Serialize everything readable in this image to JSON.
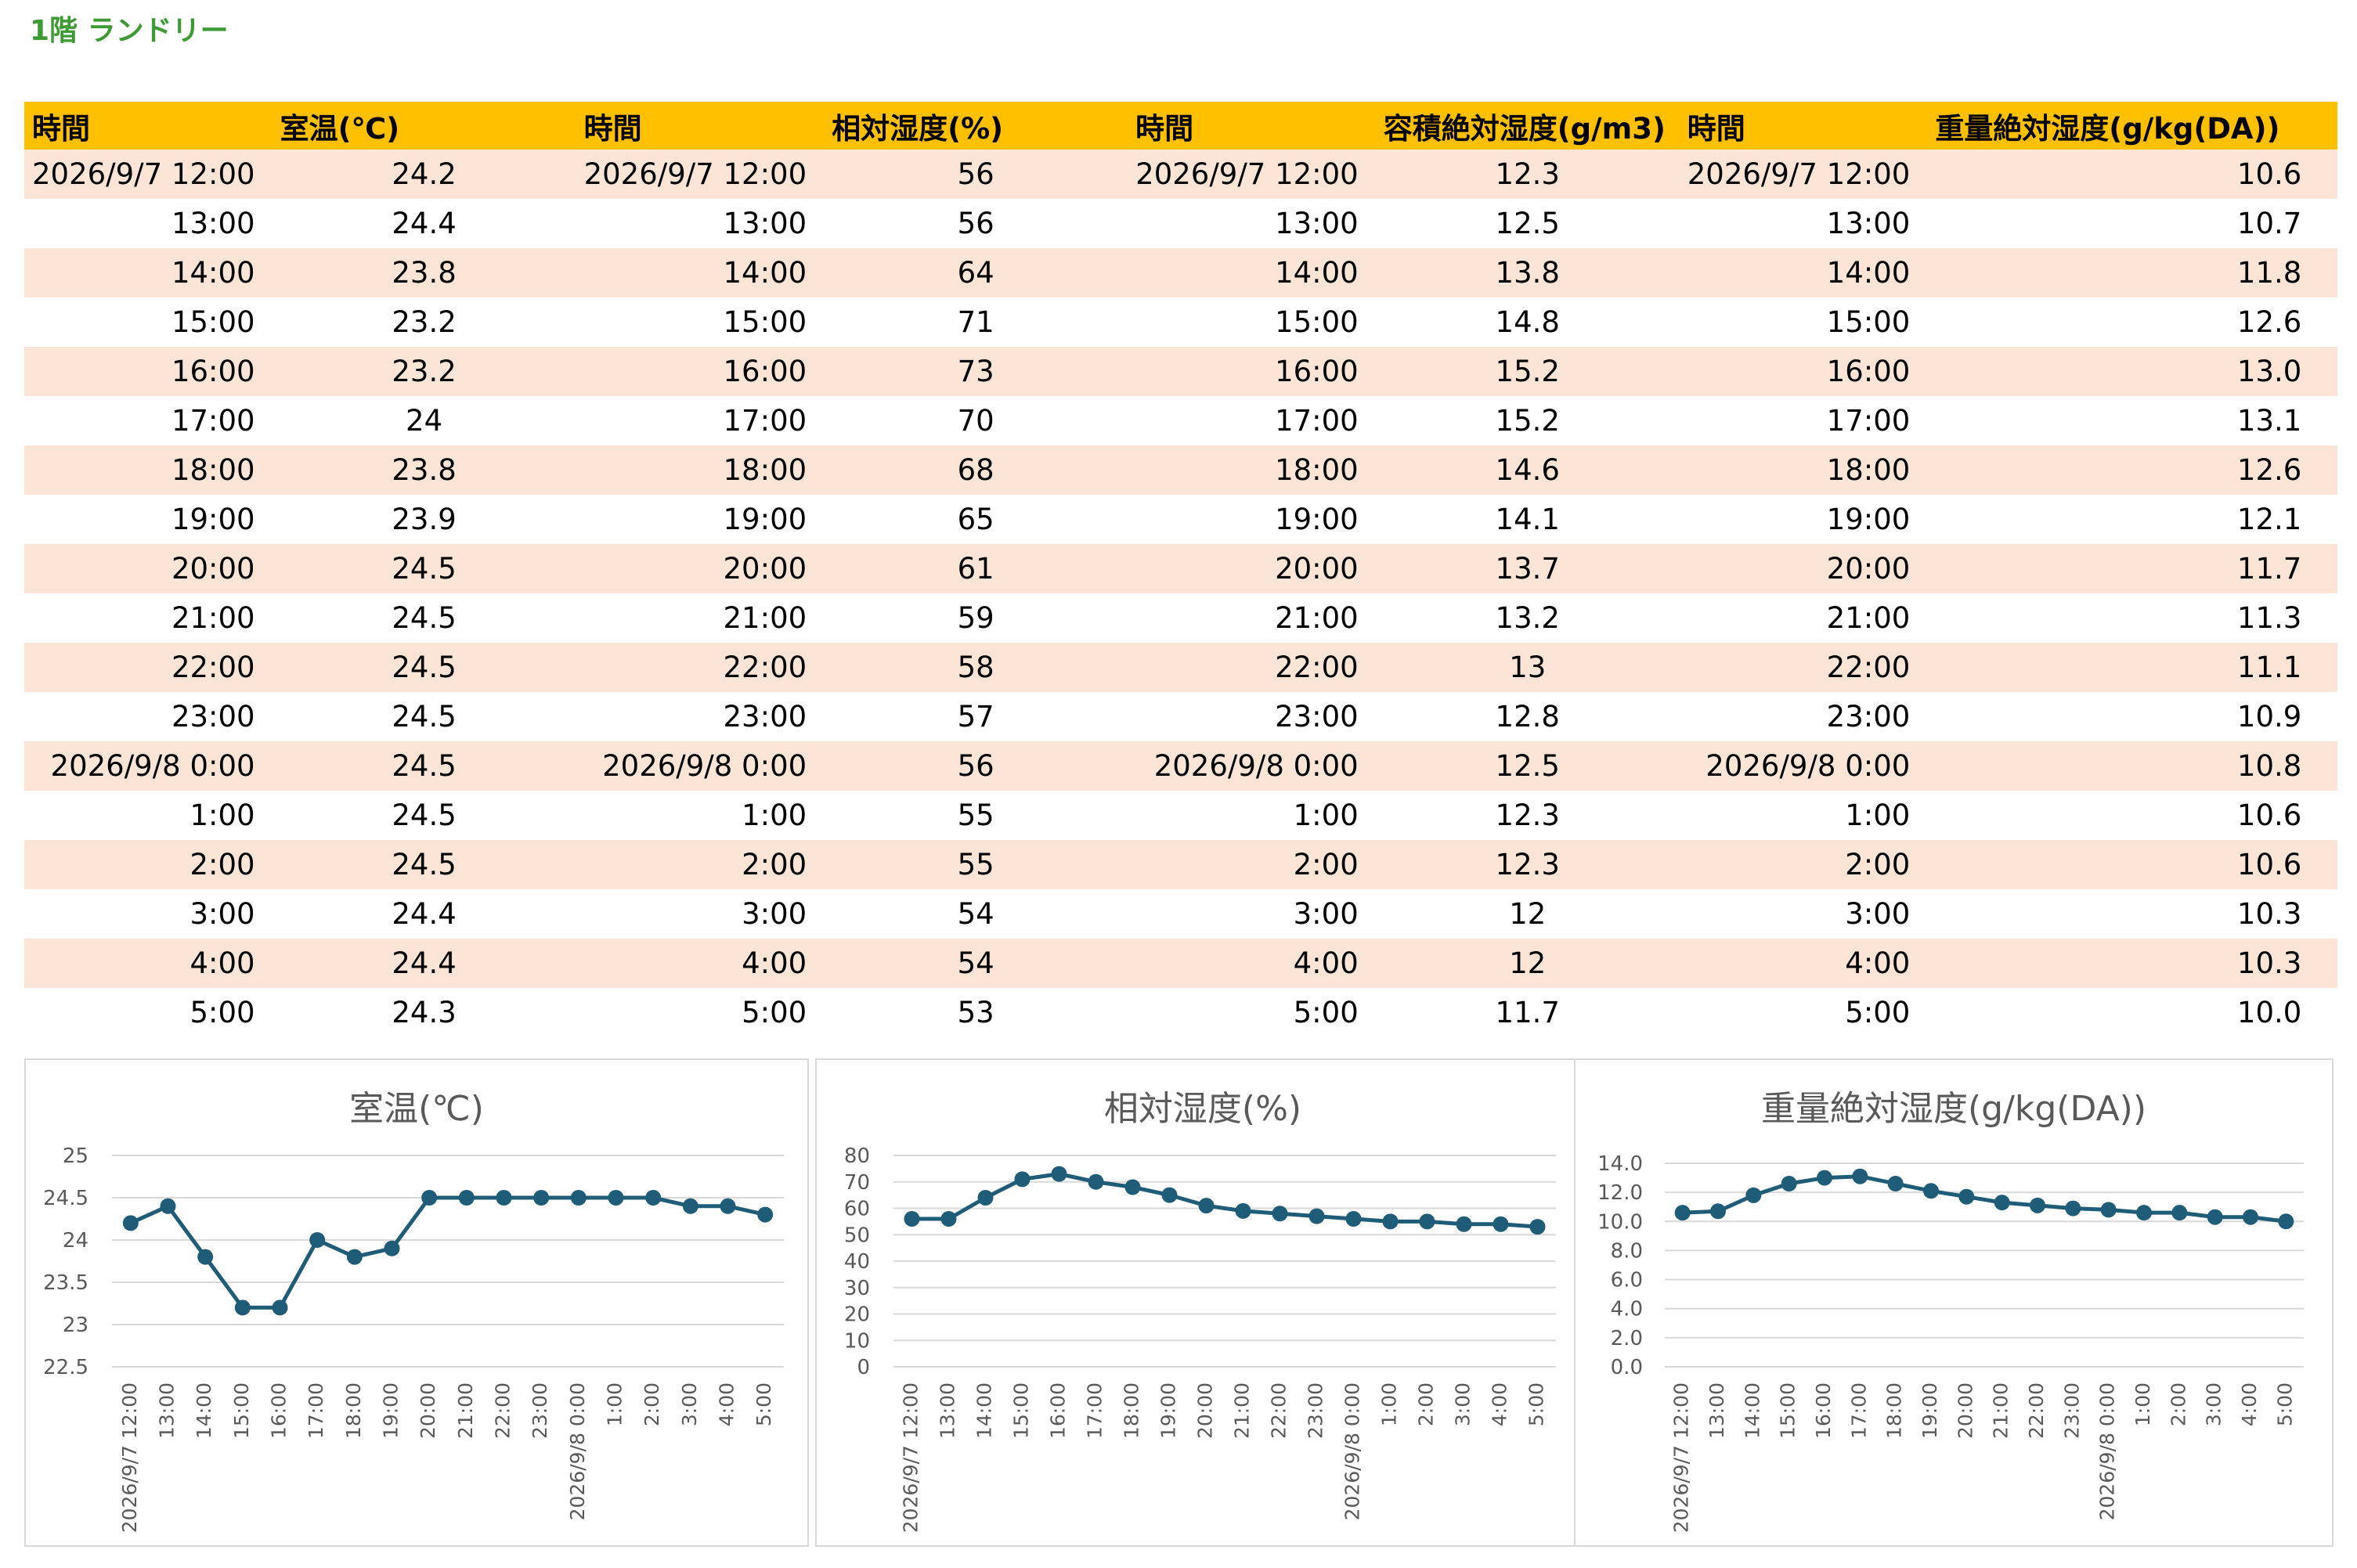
{
  "sheet_title": "1階 ランドリー",
  "table": {
    "headers": [
      "時間",
      "室温(℃)",
      "時間",
      "相対湿度(%)",
      "時間",
      "容積絶対湿度(g/m3)",
      "時間",
      "重量絶対湿度(g/kg(DA))"
    ],
    "rows": [
      [
        "2026/9/7 12:00",
        "24.2",
        "2026/9/7 12:00",
        "56",
        "2026/9/7 12:00",
        "12.3",
        "2026/9/7 12:00",
        "10.6"
      ],
      [
        "13:00",
        "24.4",
        "13:00",
        "56",
        "13:00",
        "12.5",
        "13:00",
        "10.7"
      ],
      [
        "14:00",
        "23.8",
        "14:00",
        "64",
        "14:00",
        "13.8",
        "14:00",
        "11.8"
      ],
      [
        "15:00",
        "23.2",
        "15:00",
        "71",
        "15:00",
        "14.8",
        "15:00",
        "12.6"
      ],
      [
        "16:00",
        "23.2",
        "16:00",
        "73",
        "16:00",
        "15.2",
        "16:00",
        "13.0"
      ],
      [
        "17:00",
        "24",
        "17:00",
        "70",
        "17:00",
        "15.2",
        "17:00",
        "13.1"
      ],
      [
        "18:00",
        "23.8",
        "18:00",
        "68",
        "18:00",
        "14.6",
        "18:00",
        "12.6"
      ],
      [
        "19:00",
        "23.9",
        "19:00",
        "65",
        "19:00",
        "14.1",
        "19:00",
        "12.1"
      ],
      [
        "20:00",
        "24.5",
        "20:00",
        "61",
        "20:00",
        "13.7",
        "20:00",
        "11.7"
      ],
      [
        "21:00",
        "24.5",
        "21:00",
        "59",
        "21:00",
        "13.2",
        "21:00",
        "11.3"
      ],
      [
        "22:00",
        "24.5",
        "22:00",
        "58",
        "22:00",
        "13",
        "22:00",
        "11.1"
      ],
      [
        "23:00",
        "24.5",
        "23:00",
        "57",
        "23:00",
        "12.8",
        "23:00",
        "10.9"
      ],
      [
        "2026/9/8 0:00",
        "24.5",
        "2026/9/8 0:00",
        "56",
        "2026/9/8 0:00",
        "12.5",
        "2026/9/8 0:00",
        "10.8"
      ],
      [
        "1:00",
        "24.5",
        "1:00",
        "55",
        "1:00",
        "12.3",
        "1:00",
        "10.6"
      ],
      [
        "2:00",
        "24.5",
        "2:00",
        "55",
        "2:00",
        "12.3",
        "2:00",
        "10.6"
      ],
      [
        "3:00",
        "24.4",
        "3:00",
        "54",
        "3:00",
        "12",
        "3:00",
        "10.3"
      ],
      [
        "4:00",
        "24.4",
        "4:00",
        "54",
        "4:00",
        "12",
        "4:00",
        "10.3"
      ],
      [
        "5:00",
        "24.3",
        "5:00",
        "53",
        "5:00",
        "11.7",
        "5:00",
        "10.0"
      ]
    ]
  },
  "chart_data": [
    {
      "type": "line",
      "title": "室温(℃)",
      "categories": [
        "2026/9/7 12:00",
        "13:00",
        "14:00",
        "15:00",
        "16:00",
        "17:00",
        "18:00",
        "19:00",
        "20:00",
        "21:00",
        "22:00",
        "23:00",
        "2026/9/8 0:00",
        "1:00",
        "2:00",
        "3:00",
        "4:00",
        "5:00"
      ],
      "values": [
        24.2,
        24.4,
        23.8,
        23.2,
        23.2,
        24,
        23.8,
        23.9,
        24.5,
        24.5,
        24.5,
        24.5,
        24.5,
        24.5,
        24.5,
        24.4,
        24.4,
        24.3
      ],
      "ylim": [
        22.5,
        25
      ],
      "yticks": [
        "22.5",
        "23",
        "23.5",
        "24",
        "24.5",
        "25"
      ],
      "grid": true,
      "color": "#1f5c78"
    },
    {
      "type": "line",
      "title": "相対湿度(%)",
      "categories": [
        "2026/9/7 12:00",
        "13:00",
        "14:00",
        "15:00",
        "16:00",
        "17:00",
        "18:00",
        "19:00",
        "20:00",
        "21:00",
        "22:00",
        "23:00",
        "2026/9/8 0:00",
        "1:00",
        "2:00",
        "3:00",
        "4:00",
        "5:00"
      ],
      "values": [
        56,
        56,
        64,
        71,
        73,
        70,
        68,
        65,
        61,
        59,
        58,
        57,
        56,
        55,
        55,
        54,
        54,
        53
      ],
      "ylim": [
        0,
        80
      ],
      "yticks": [
        "0",
        "10",
        "20",
        "30",
        "40",
        "50",
        "60",
        "70",
        "80"
      ],
      "grid": true,
      "color": "#1f5c78"
    },
    {
      "type": "line",
      "title": "重量絶対湿度(g/kg(DA))",
      "categories": [
        "2026/9/7 12:00",
        "13:00",
        "14:00",
        "15:00",
        "16:00",
        "17:00",
        "18:00",
        "19:00",
        "20:00",
        "21:00",
        "22:00",
        "23:00",
        "2026/9/8 0:00",
        "1:00",
        "2:00",
        "3:00",
        "4:00",
        "5:00"
      ],
      "values": [
        10.6,
        10.7,
        11.8,
        12.6,
        13.0,
        13.1,
        12.6,
        12.1,
        11.7,
        11.3,
        11.1,
        10.9,
        10.8,
        10.6,
        10.6,
        10.3,
        10.3,
        10.0
      ],
      "ylim": [
        0,
        14
      ],
      "yticks": [
        "0.0",
        "2.0",
        "4.0",
        "6.0",
        "8.0",
        "10.0",
        "12.0",
        "14.0"
      ],
      "grid": true,
      "color": "#1f5c78"
    }
  ]
}
